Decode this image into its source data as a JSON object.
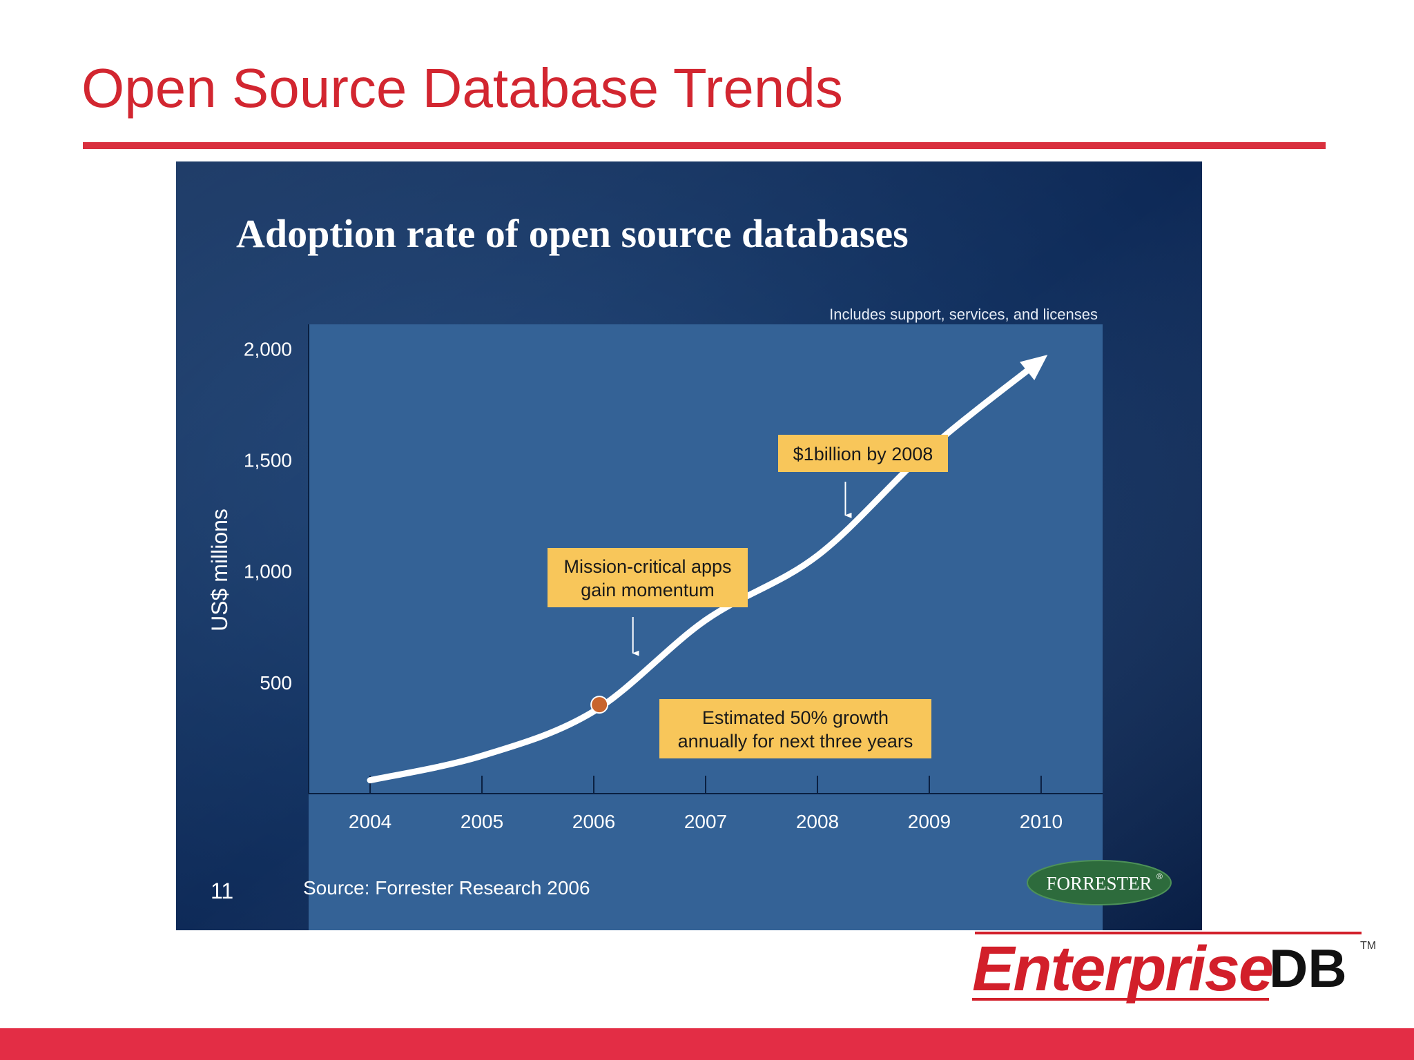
{
  "slide": {
    "title": "Open Source Database Trends",
    "page_number": "11"
  },
  "chart_data": {
    "type": "line",
    "title": "Adoption rate of open source databases",
    "subtitle": "Includes support, services, and licenses",
    "xlabel": "",
    "ylabel": "US$ millions",
    "x": [
      2004,
      2005,
      2006,
      2007,
      2008,
      2009,
      2010
    ],
    "series": [
      {
        "values": [
          60,
          170,
          370,
          780,
          1070,
          1550,
          1950
        ]
      }
    ],
    "xlim": [
      2003.45,
      2010.55
    ],
    "ylim": [
      0,
      2110
    ],
    "yticks": [
      {
        "value": 500,
        "label": "500"
      },
      {
        "value": 1000,
        "label": "1,000"
      },
      {
        "value": 1500,
        "label": "1,500"
      },
      {
        "value": 2000,
        "label": "2,000"
      }
    ],
    "xticks": [
      {
        "value": 2004,
        "label": "2004"
      },
      {
        "value": 2005,
        "label": "2005"
      },
      {
        "value": 2006,
        "label": "2006"
      },
      {
        "value": 2007,
        "label": "2007"
      },
      {
        "value": 2008,
        "label": "2008"
      },
      {
        "value": 2009,
        "label": "2009"
      },
      {
        "value": 2010,
        "label": "2010"
      }
    ],
    "highlight_point": {
      "x": 2006.05,
      "y": 400
    },
    "annotations": [
      {
        "id": "mission",
        "lines": [
          "Mission-critical apps",
          "gain momentum"
        ],
        "arrow_to": {
          "x": 2006.35,
          "y": 600
        }
      },
      {
        "id": "billion",
        "lines": [
          "$1billion by 2008"
        ],
        "arrow_to": {
          "x": 2008.25,
          "y": 1220
        }
      },
      {
        "id": "growth",
        "lines": [
          "Estimated 50% growth",
          "annually for next three years"
        ],
        "arrow_to": null
      }
    ],
    "grid": false,
    "source": "Source: Forrester Research 2006",
    "colors": {
      "panel_bg": "#143463",
      "plot_bg": "#346296",
      "line": "#ffffff",
      "annotation_bg": "#f8c65a",
      "highlight_point": "#c8642d",
      "forrester_badge": "#2d6b3c"
    }
  },
  "forrester_logo": {
    "text": "FORRESTER",
    "mark": "®"
  },
  "brand_logo": {
    "enterprise": "Enterprise",
    "db": "DB",
    "tm": "TM"
  }
}
